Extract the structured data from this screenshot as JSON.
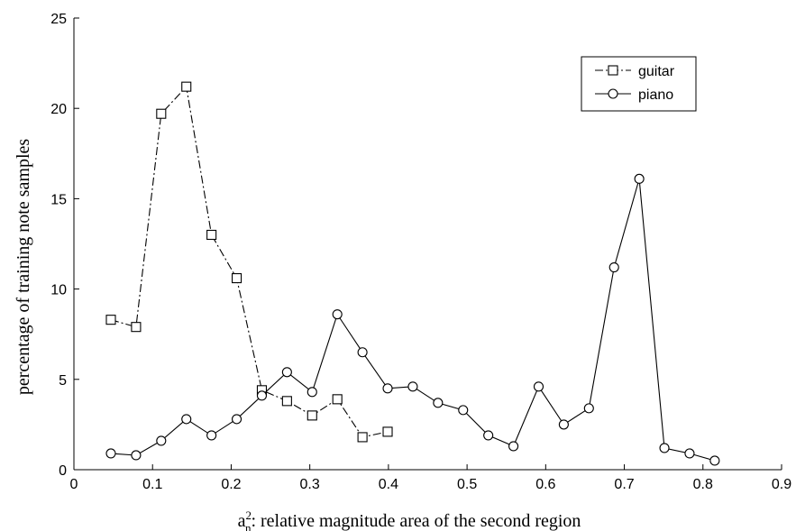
{
  "chart_data": {
    "type": "line",
    "title": "",
    "xlabel_prefix": "a",
    "xlabel_sup": "2",
    "xlabel_sub": "n",
    "xlabel_rest": ": relative magnitude area of the second region",
    "ylabel": "percentage of training note samples",
    "xlim": [
      0,
      0.9
    ],
    "ylim": [
      0,
      25
    ],
    "xticks": [
      "0",
      "0.1",
      "0.2",
      "0.3",
      "0.4",
      "0.5",
      "0.6",
      "0.7",
      "0.8",
      "0.9"
    ],
    "yticks": [
      "0",
      "5",
      "10",
      "15",
      "20",
      "25"
    ],
    "grid": false,
    "legend_position": "top-right",
    "series": [
      {
        "name": "guitar",
        "marker": "square",
        "line_style": "dash-dot",
        "color": "#000000",
        "x": [
          0.047,
          0.079,
          0.111,
          0.143,
          0.175,
          0.207,
          0.239,
          0.271,
          0.303,
          0.335,
          0.367,
          0.399
        ],
        "y": [
          8.3,
          7.9,
          19.7,
          21.2,
          13.0,
          10.6,
          4.4,
          3.8,
          3.0,
          3.9,
          1.8,
          2.1
        ]
      },
      {
        "name": "piano",
        "marker": "circle",
        "line_style": "solid",
        "color": "#000000",
        "x": [
          0.047,
          0.079,
          0.111,
          0.143,
          0.175,
          0.207,
          0.239,
          0.271,
          0.303,
          0.335,
          0.367,
          0.399,
          0.431,
          0.463,
          0.495,
          0.527,
          0.559,
          0.591,
          0.623,
          0.655,
          0.687,
          0.719,
          0.751,
          0.783,
          0.815
        ],
        "y": [
          0.9,
          0.8,
          1.6,
          2.8,
          1.9,
          2.8,
          4.1,
          5.4,
          4.3,
          8.6,
          6.5,
          4.5,
          4.6,
          3.7,
          3.3,
          1.9,
          1.3,
          4.6,
          2.5,
          3.4,
          11.2,
          16.1,
          1.2,
          0.9,
          0.5
        ]
      }
    ]
  }
}
